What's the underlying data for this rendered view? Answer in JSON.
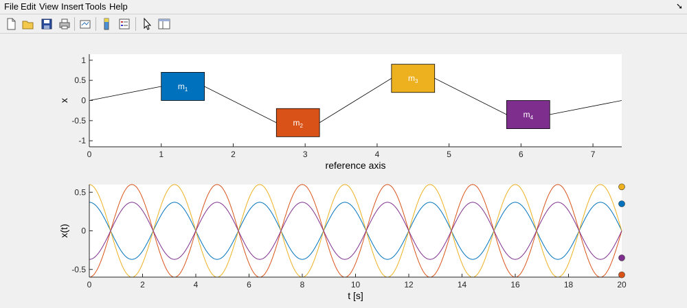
{
  "menu": {
    "file": "File",
    "edit": "Edit",
    "view": "View",
    "insert": "Insert",
    "tools": "Tools",
    "help": "Help"
  },
  "toolbar": [
    {
      "name": "new-figure",
      "icon": "new-file-icon"
    },
    {
      "name": "open-file",
      "icon": "folder-open-icon"
    },
    {
      "name": "save",
      "icon": "floppy-disk-icon"
    },
    {
      "name": "print",
      "icon": "printer-icon"
    },
    {
      "name": "link-plot",
      "icon": "link-plot-icon"
    },
    {
      "name": "insert-colorbar",
      "icon": "colorbar-icon"
    },
    {
      "name": "insert-legend",
      "icon": "legend-icon"
    },
    {
      "name": "edit-plot",
      "icon": "pointer-arrow-icon"
    },
    {
      "name": "property-inspector",
      "icon": "property-inspector-icon"
    }
  ],
  "colors": {
    "m1": "#0072BD",
    "m2": "#D95319",
    "m3": "#EDB120",
    "m4": "#7E2F8E"
  },
  "chart_data": [
    {
      "type": "line",
      "title": "",
      "xlabel": "reference axis",
      "ylabel": "x",
      "xlim": [
        0,
        7.4
      ],
      "ylim": [
        -1.15,
        1.15
      ],
      "xticks": [
        "0",
        "1",
        "2",
        "3",
        "4",
        "5",
        "6",
        "7"
      ],
      "yticks": [
        "1",
        "0.5",
        "0",
        "-0.5",
        "-1"
      ],
      "spring_line": {
        "x": [
          0,
          1,
          1.6,
          2.6,
          3.2,
          4.2,
          4.8,
          5.8,
          6.4,
          7.4
        ],
        "y": [
          0,
          0.35,
          0.35,
          -0.55,
          -0.55,
          0.55,
          0.55,
          -0.35,
          -0.35,
          0
        ]
      },
      "masses": [
        {
          "label": "m",
          "sub": "1",
          "x0": 1.0,
          "x1": 1.6,
          "y0": 0.0,
          "y1": 0.7,
          "color": "#0072BD"
        },
        {
          "label": "m",
          "sub": "2",
          "x0": 2.6,
          "x1": 3.2,
          "y0": -0.9,
          "y1": -0.2,
          "color": "#D95319"
        },
        {
          "label": "m",
          "sub": "3",
          "x0": 4.2,
          "x1": 4.8,
          "y0": 0.2,
          "y1": 0.9,
          "color": "#EDB120"
        },
        {
          "label": "m",
          "sub": "4",
          "x0": 5.8,
          "x1": 6.4,
          "y0": -0.7,
          "y1": 0.0,
          "color": "#7E2F8E"
        }
      ],
      "grid": false
    },
    {
      "type": "line",
      "title": "",
      "xlabel": "t [s]",
      "ylabel": "x(t)",
      "xlim": [
        0,
        20
      ],
      "ylim": [
        -0.6,
        0.6
      ],
      "xticks": [
        "0",
        "2",
        "4",
        "6",
        "8",
        "10",
        "12",
        "14",
        "16",
        "18",
        "20"
      ],
      "yticks": [
        "0.5",
        "0",
        "-0.5"
      ],
      "period": 3.2,
      "series": [
        {
          "amplitude": 0.37,
          "phase": 0,
          "color": "#0072BD",
          "end_value": 0.35
        },
        {
          "amplitude": -0.6,
          "phase": 0,
          "color": "#D95319",
          "end_value": -0.57
        },
        {
          "amplitude": 0.6,
          "phase": 0,
          "color": "#EDB120",
          "end_value": 0.57
        },
        {
          "amplitude": -0.37,
          "phase": 0,
          "color": "#7E2F8E",
          "end_value": -0.35
        }
      ],
      "grid": false
    }
  ]
}
